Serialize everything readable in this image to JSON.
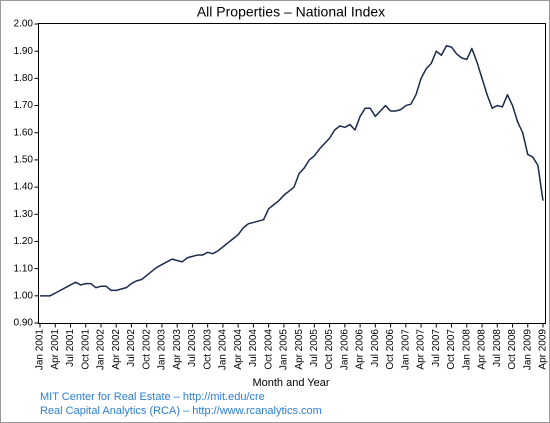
{
  "chart_data": {
    "type": "line",
    "title": "All Properties – National Index",
    "x_label": "Month and Year",
    "notes": [
      "MIT Center for Real Estate – http://mit.edu/cre",
      "Real Capital Analytics (RCA) – http://www.rcanalytics.com"
    ],
    "categories": [
      "Jan 2001",
      null,
      null,
      "Apr 2001",
      null,
      null,
      "Jul 2001",
      null,
      null,
      "Oct 2001",
      null,
      null,
      "Jan 2002",
      null,
      null,
      "Apr 2002",
      null,
      null,
      "Jul 2002",
      null,
      null,
      "Oct 2002",
      null,
      null,
      "Jan 2003",
      null,
      null,
      "Apr 2003",
      null,
      null,
      "Jul 2003",
      null,
      null,
      "Oct 2003",
      null,
      null,
      "Jan 2004",
      null,
      null,
      "Apr 2004",
      null,
      null,
      "Jul 2004",
      null,
      null,
      "Oct 2004",
      null,
      null,
      "Jan 2005",
      null,
      null,
      "Apr 2005",
      null,
      null,
      "Jul 2005",
      null,
      null,
      "Oct 2005",
      null,
      null,
      "Jan 2006",
      null,
      null,
      "Apr 2006",
      null,
      null,
      "Jul 2006",
      null,
      null,
      "Oct 2006",
      null,
      null,
      "Jan 2007",
      null,
      null,
      "Apr 2007",
      null,
      null,
      "Jul 2007",
      null,
      null,
      "Oct 2007",
      null,
      null,
      "Jan 2008",
      null,
      null,
      "Apr 2008",
      null,
      null,
      "Jul 2008",
      null,
      null,
      "Oct 2008",
      null,
      null,
      "Jan 2009",
      null,
      null,
      "Apr 2009"
    ],
    "series": [
      {
        "name": "National Index",
        "color": "#1c2a4a",
        "values": [
          1.0,
          1.0,
          1.0,
          1.01,
          1.02,
          1.03,
          1.04,
          1.05,
          1.04,
          1.045,
          1.045,
          1.03,
          1.035,
          1.035,
          1.02,
          1.02,
          1.025,
          1.03,
          1.045,
          1.055,
          1.06,
          1.075,
          1.09,
          1.105,
          1.115,
          1.125,
          1.135,
          1.13,
          1.125,
          1.14,
          1.145,
          1.15,
          1.15,
          1.16,
          1.155,
          1.165,
          1.18,
          1.195,
          1.21,
          1.225,
          1.25,
          1.265,
          1.27,
          1.275,
          1.28,
          1.32,
          1.335,
          1.35,
          1.37,
          1.385,
          1.4,
          1.45,
          1.47,
          1.5,
          1.515,
          1.54,
          1.56,
          1.58,
          1.61,
          1.625,
          1.62,
          1.63,
          1.61,
          1.66,
          1.69,
          1.69,
          1.66,
          1.68,
          1.7,
          1.68,
          1.68,
          1.685,
          1.7,
          1.705,
          1.74,
          1.8,
          1.835,
          1.855,
          1.9,
          1.885,
          1.92,
          1.915,
          1.89,
          1.875,
          1.87,
          1.91,
          1.86,
          1.8,
          1.74,
          1.69,
          1.7,
          1.695,
          1.74,
          1.7,
          1.64,
          1.6,
          1.52,
          1.51,
          1.48,
          1.35
        ]
      }
    ],
    "ylim": [
      0.9,
      2.0
    ],
    "yticks": [
      {
        "value": 0.9,
        "label": "0.90"
      },
      {
        "value": 1.0,
        "label": "1.00"
      },
      {
        "value": 1.1,
        "label": "1.10"
      },
      {
        "value": 1.2,
        "label": "1.20"
      },
      {
        "value": 1.3,
        "label": "1.30"
      },
      {
        "value": 1.4,
        "label": "1.40"
      },
      {
        "value": 1.5,
        "label": "1.50"
      },
      {
        "value": 1.6,
        "label": "1.60"
      },
      {
        "value": 1.7,
        "label": "1.70"
      },
      {
        "value": 1.8,
        "label": "1.80"
      },
      {
        "value": 1.9,
        "label": "1.90"
      },
      {
        "value": 2.0,
        "label": "2.00"
      }
    ],
    "grid": false
  }
}
